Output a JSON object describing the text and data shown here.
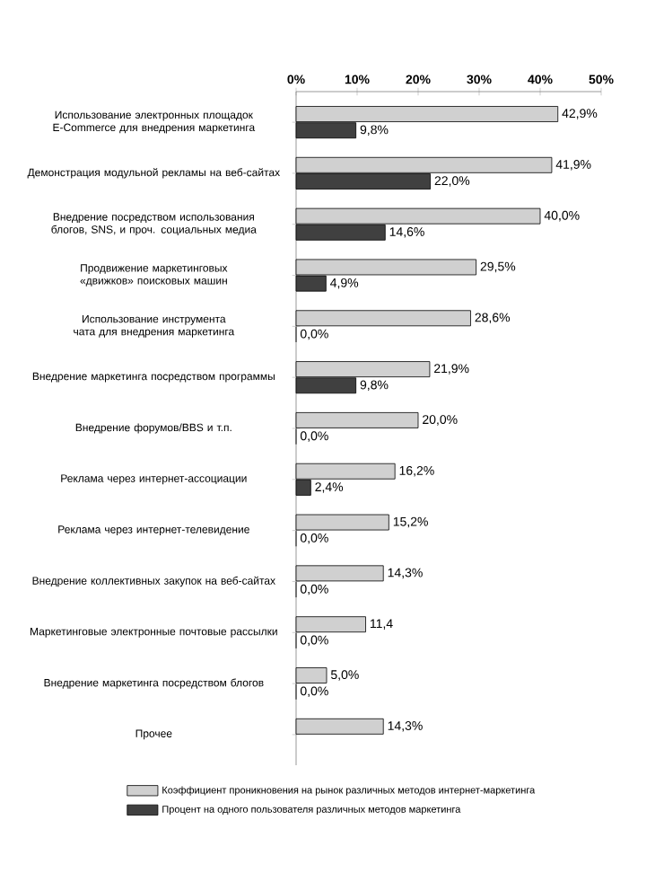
{
  "chart_data": {
    "type": "bar",
    "orientation": "horizontal",
    "legend": "bottom",
    "categories": [
      "Использование электронных площадок E-Commerce для внедрения маркетинга",
      "Демонстрация модульной рекламы на веб-сайтах",
      "Внедрение посредством использования блогов, SNS, и проч. социальных медиа",
      "Продвижение маркетинговых «движков» поисковых машин",
      "Использование  инструмента чата для внедрения маркетинга",
      "Внедрение маркетинга посредством программы",
      "Внедрение форумов/BBS и т.п.",
      "Реклама через интернет-ассоциации",
      "Реклама через интернет-телевидение",
      "Внедрение коллективных закупок на веб-сайтах",
      "Маркетинговые электронные почтовые рассылки",
      "Внедрение маркетинга посредством блогов",
      "Прочее"
    ],
    "series": [
      {
        "name": "Коэффициент проникновения на рынок различных методов интернет-маркетинга",
        "color": "#d0d0d0",
        "values": [
          42.9,
          41.9,
          40.0,
          29.5,
          28.6,
          21.9,
          20.0,
          16.2,
          15.2,
          14.3,
          11.4,
          5.0,
          14.3
        ],
        "value_labels": [
          "42,9%",
          "41,9%",
          "40,0%",
          "29,5%",
          "28,6%",
          "21,9%",
          "20,0%",
          "16,2%",
          "15,2%",
          "14,3%",
          "11,4",
          "5,0%",
          "14,3%"
        ]
      },
      {
        "name": "Процент на одного пользователя различных методов маркетинга",
        "color": "#404040",
        "values": [
          9.8,
          22.0,
          14.6,
          4.9,
          0.0,
          9.8,
          0.0,
          2.4,
          0.0,
          0.0,
          0.0,
          0.0,
          null
        ],
        "value_labels": [
          "9,8%",
          "22,0%",
          "14,6%",
          "4,9%",
          "0,0%",
          "9,8%",
          "0,0%",
          "2,4%",
          "0,0%",
          "0,0%",
          "0,0%",
          "0,0%",
          null
        ]
      }
    ],
    "xlim": [
      0,
      50
    ],
    "xticks": [
      {
        "value": 0,
        "label": "0%"
      },
      {
        "value": 10,
        "label": "10%"
      },
      {
        "value": 20,
        "label": "20%"
      },
      {
        "value": 30,
        "label": "30%"
      },
      {
        "value": 40,
        "label": "40%"
      },
      {
        "value": 50,
        "label": "50%"
      }
    ]
  }
}
